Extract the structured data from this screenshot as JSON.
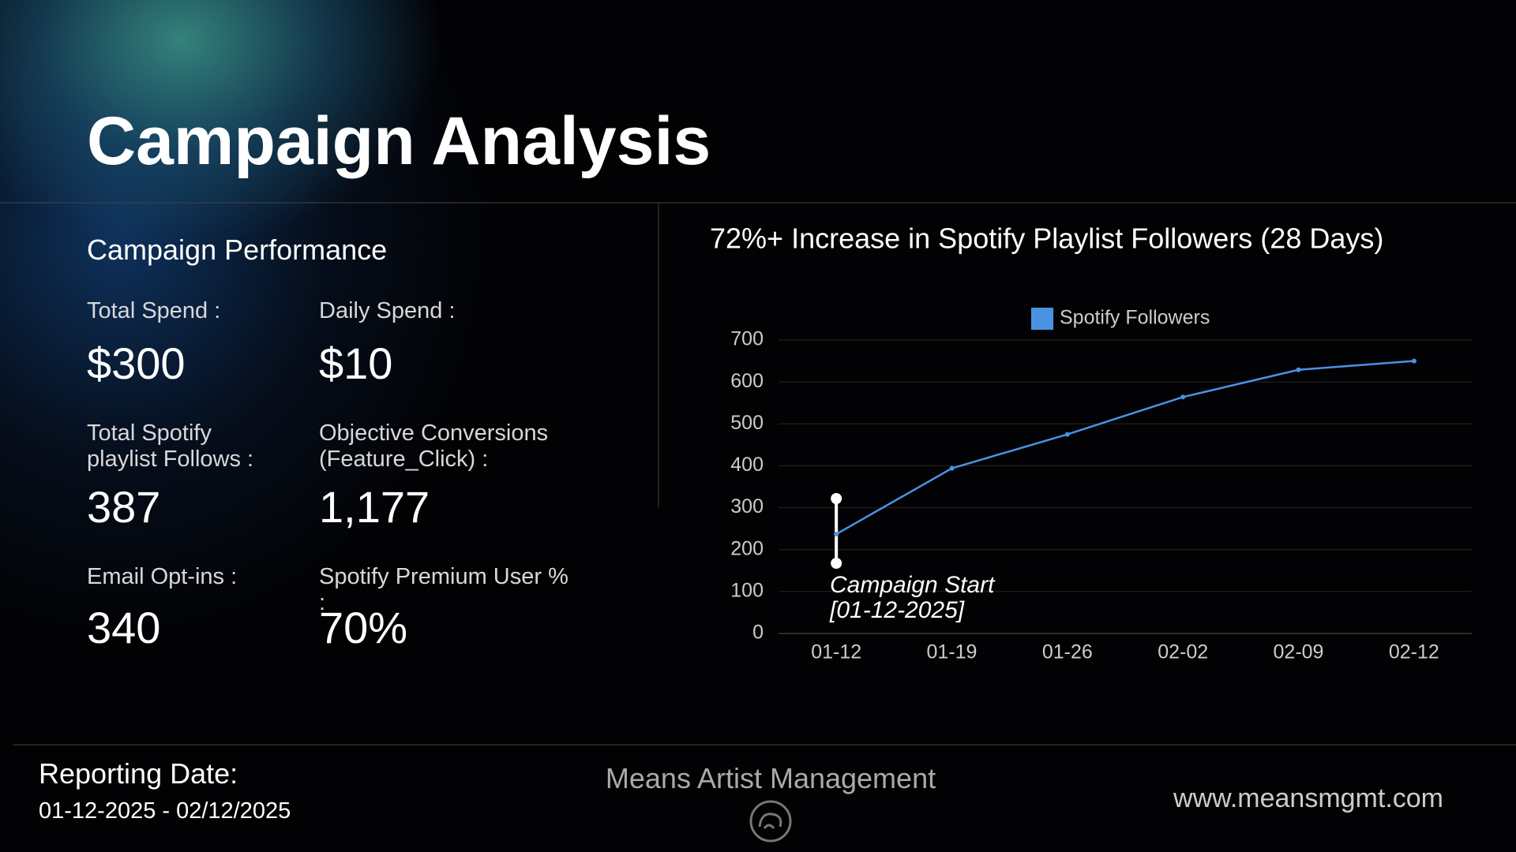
{
  "header": {
    "title": "Campaign Analysis"
  },
  "metrics": {
    "heading": "Campaign Performance",
    "items": [
      {
        "label": "Total Spend :",
        "value": "$300"
      },
      {
        "label": "Daily Spend :",
        "value": "$10"
      },
      {
        "label": "Total Spotify playlist Follows :",
        "value": "387"
      },
      {
        "label": "Objective Conversions (Feature_Click) :",
        "value": "1,177"
      },
      {
        "label": "Email Opt-ins :",
        "value": "340"
      },
      {
        "label": "Spotify Premium User % :",
        "value": "70%"
      }
    ]
  },
  "chart_data": {
    "type": "line",
    "title": "72%+ Increase in Spotify Playlist Followers (28 Days)",
    "categories": [
      "01-12",
      "01-19",
      "01-26",
      "02-02",
      "02-09",
      "02-12"
    ],
    "series": [
      {
        "name": "Spotify Followers",
        "color": "#4a93e3",
        "values": [
          237,
          394,
          475,
          564,
          629,
          650
        ]
      }
    ],
    "ylim": [
      0,
      700
    ],
    "yticks": [
      0,
      100,
      200,
      300,
      400,
      500,
      600,
      700
    ],
    "grid": true,
    "legend": "top",
    "annotation": [
      "Campaign Start",
      "[01-12-2025]"
    ]
  },
  "footer": {
    "reporting_label": "Reporting Date:",
    "reporting_range": "01-12-2025 - 02/12/2025",
    "company": "Means Artist Management",
    "website": "www.meansmgmt.com"
  }
}
